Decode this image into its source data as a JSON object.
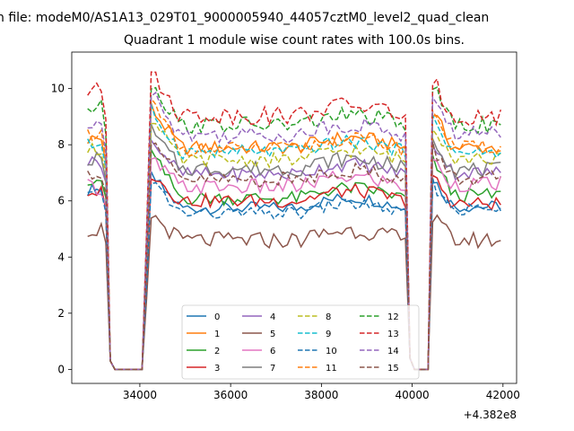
{
  "figure": {
    "suptitle": "n file: modeM0/AS1A13_029T01_9000005940_44057cztM0_level2_quad_clean"
  },
  "chart_data": {
    "type": "line",
    "title": "Quadrant 1 module wise count rates with 100.0s bins.",
    "xlabel": "",
    "ylabel": "",
    "x_offset_label": "+4.382e8",
    "xlim": [
      32500,
      42300
    ],
    "ylim": [
      -0.5,
      11.3
    ],
    "xticks": [
      34000,
      36000,
      38000,
      40000,
      42000
    ],
    "yticks": [
      0,
      2,
      4,
      6,
      8,
      10
    ],
    "legend_location": "lower center",
    "legend_columns": 4,
    "segments": [
      {
        "x_start": 32850,
        "x_end": 33150,
        "step": 100
      },
      {
        "x_start": 33250,
        "x_end": 33350,
        "step": 100
      },
      {
        "x_start": 33450,
        "x_end": 34050,
        "step": 100,
        "zero": true
      },
      {
        "x_start": 34150,
        "x_end": 34150,
        "step": 100
      },
      {
        "x_start": 34250,
        "x_end": 39850,
        "step": 100
      },
      {
        "x_start": 39950,
        "x_end": 39950,
        "step": 100
      },
      {
        "x_start": 40050,
        "x_end": 40350,
        "step": 100,
        "zero": true
      },
      {
        "x_start": 40450,
        "x_end": 41950,
        "step": 100
      }
    ],
    "series": [
      {
        "name": "0",
        "color": "#1f77b4",
        "dashed": false,
        "level": 5.75,
        "amp": 0.22,
        "start": 6.4,
        "peak": 6.9,
        "late": 5.8
      },
      {
        "name": "1",
        "color": "#ff7f0e",
        "dashed": false,
        "level": 7.9,
        "amp": 0.25,
        "start": 8.2,
        "peak": 9.3,
        "late": 7.9
      },
      {
        "name": "2",
        "color": "#2ca02c",
        "dashed": false,
        "level": 6.1,
        "amp": 0.25,
        "start": 6.8,
        "peak": 7.7,
        "late": 6.2
      },
      {
        "name": "3",
        "color": "#d62728",
        "dashed": false,
        "level": 6.0,
        "amp": 0.25,
        "start": 6.3,
        "peak": 7.0,
        "late": 5.9
      },
      {
        "name": "4",
        "color": "#9467bd",
        "dashed": false,
        "level": 6.95,
        "amp": 0.25,
        "start": 7.4,
        "peak": 8.2,
        "late": 7.0
      },
      {
        "name": "5",
        "color": "#8c564b",
        "dashed": false,
        "level": 4.6,
        "amp": 0.3,
        "start": 5.0,
        "peak": 5.5,
        "late": 4.6
      },
      {
        "name": "6",
        "color": "#e377c2",
        "dashed": false,
        "level": 6.5,
        "amp": 0.28,
        "start": 6.5,
        "peak": 7.5,
        "late": 6.6
      },
      {
        "name": "7",
        "color": "#7f7f7f",
        "dashed": false,
        "level": 7.15,
        "amp": 0.28,
        "start": 7.5,
        "peak": 8.5,
        "late": 7.1
      },
      {
        "name": "8",
        "color": "#bcbd22",
        "dashed": true,
        "level": 7.45,
        "amp": 0.25,
        "start": 7.8,
        "peak": 8.9,
        "late": 7.5
      },
      {
        "name": "9",
        "color": "#17becf",
        "dashed": true,
        "level": 7.75,
        "amp": 0.25,
        "start": 8.0,
        "peak": 9.2,
        "late": 7.7
      },
      {
        "name": "10",
        "color": "#1f77b4",
        "dashed": true,
        "level": 5.55,
        "amp": 0.22,
        "start": 6.2,
        "peak": 6.7,
        "late": 5.7
      },
      {
        "name": "11",
        "color": "#ff7f0e",
        "dashed": true,
        "level": 7.85,
        "amp": 0.25,
        "start": 8.4,
        "peak": 9.5,
        "late": 7.9
      },
      {
        "name": "12",
        "color": "#2ca02c",
        "dashed": true,
        "level": 8.7,
        "amp": 0.3,
        "start": 9.3,
        "peak": 10.2,
        "late": 8.7
      },
      {
        "name": "13",
        "color": "#d62728",
        "dashed": true,
        "level": 9.05,
        "amp": 0.32,
        "start": 9.9,
        "peak": 10.5,
        "late": 9.0
      },
      {
        "name": "14",
        "color": "#9467bd",
        "dashed": true,
        "level": 8.35,
        "amp": 0.3,
        "start": 8.6,
        "peak": 10.0,
        "late": 8.4
      },
      {
        "name": "15",
        "color": "#8c564b",
        "dashed": true,
        "level": 6.75,
        "amp": 0.28,
        "start": 7.0,
        "peak": 8.0,
        "late": 6.8
      }
    ]
  }
}
